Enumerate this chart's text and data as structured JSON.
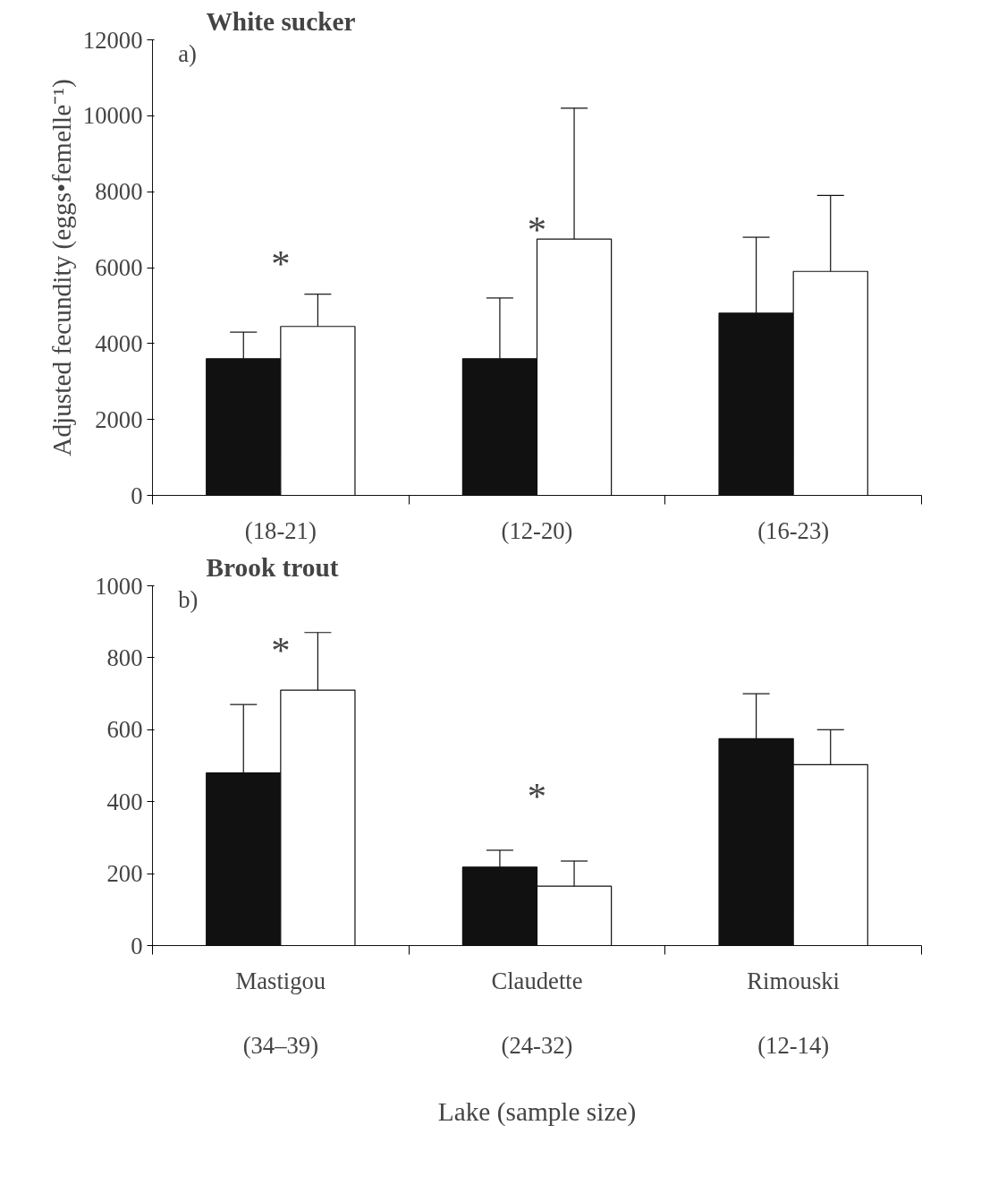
{
  "chart_data": [
    {
      "type": "bar",
      "title": "White sucker",
      "ylabel": "Adjusted fecundity (eggs•femelle⁻¹)",
      "categories": [
        "(18-21)",
        "(12-20)",
        "(16-23)"
      ],
      "series": [
        {
          "color": "#111111",
          "values": [
            3600,
            3600,
            4800
          ],
          "errors": [
            [
              3600,
              4300
            ],
            [
              3600,
              5200
            ],
            [
              4800,
              6800
            ]
          ]
        },
        {
          "color": "#ffffff",
          "values": [
            4450,
            6750,
            5900
          ],
          "errors": [
            [
              4450,
              5300
            ],
            [
              6750,
              10200
            ],
            [
              5900,
              7900
            ]
          ]
        }
      ],
      "ylim": [
        0,
        12000
      ],
      "yticks": [
        0,
        2000,
        4000,
        6000,
        8000,
        10000,
        12000
      ],
      "annotations": [
        "a)",
        "*",
        "*"
      ]
    },
    {
      "type": "bar",
      "title": "Brook trout",
      "xlabel": "Lake (sample size)",
      "categories": [
        "Mastigou\n\n(34–39)",
        "Claudette\n\n(24-32)",
        "Rimouski\n\n(12-14)"
      ],
      "series": [
        {
          "color": "#111111",
          "values": [
            480,
            218,
            575
          ],
          "errors": [
            [
              480,
              670
            ],
            [
              218,
              265
            ],
            [
              575,
              700
            ]
          ]
        },
        {
          "color": "#ffffff",
          "values": [
            710,
            165,
            503
          ],
          "errors": [
            [
              710,
              870
            ],
            [
              165,
              235
            ],
            [
              503,
              600
            ]
          ]
        }
      ],
      "ylim": [
        0,
        1000
      ],
      "yticks": [
        0,
        200,
        400,
        600,
        800,
        1000
      ],
      "annotations": [
        "b)",
        "*",
        "*"
      ]
    }
  ]
}
